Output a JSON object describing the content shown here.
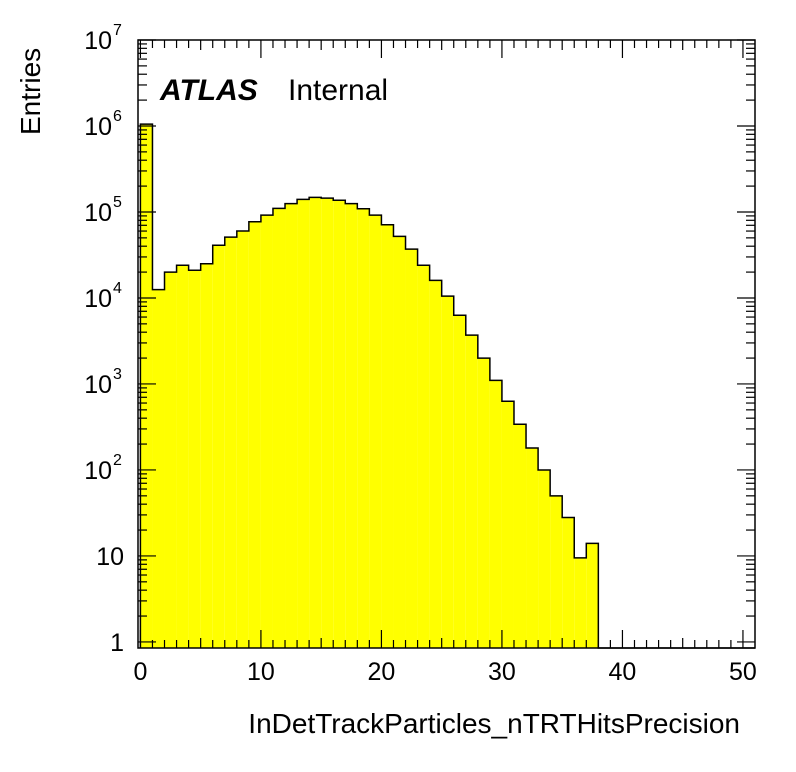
{
  "labels": {
    "atlas": "ATLAS",
    "internal": "Internal"
  },
  "chart_data": {
    "type": "bar",
    "histogram": true,
    "xlabel": "InDetTrackParticles_nTRTHitsPrecision",
    "ylabel": "Entries",
    "xlim": [
      -0.2,
      51
    ],
    "ylim": [
      0.85,
      10000000
    ],
    "yscale": "log",
    "bin_width": 1,
    "bin_starts": [
      0,
      1,
      2,
      3,
      4,
      5,
      6,
      7,
      8,
      9,
      10,
      11,
      12,
      13,
      14,
      15,
      16,
      17,
      18,
      19,
      20,
      21,
      22,
      23,
      24,
      25,
      26,
      27,
      28,
      29,
      30,
      31,
      32,
      33,
      34,
      35,
      36,
      37,
      38,
      39,
      40,
      41,
      42,
      43,
      44,
      45,
      46,
      47,
      48,
      49,
      50
    ],
    "values": [
      1050000,
      12500,
      20000,
      24000,
      21000,
      25000,
      41000,
      51000,
      60000,
      77000,
      92000,
      110000,
      125000,
      140000,
      148000,
      145000,
      137000,
      125000,
      109000,
      92000,
      71000,
      52000,
      37000,
      24000,
      16000,
      10500,
      6300,
      3700,
      2000,
      1100,
      630,
      340,
      180,
      100,
      50,
      28,
      9.5,
      14,
      0,
      0,
      0,
      0,
      0,
      0,
      0,
      0,
      0,
      0,
      0,
      0,
      0
    ],
    "x_ticks": [
      0,
      10,
      20,
      30,
      40,
      50
    ],
    "y_ticks": [
      {
        "base": "1",
        "exp": ""
      },
      {
        "base": "10",
        "exp": ""
      },
      {
        "base": "10",
        "exp": "2"
      },
      {
        "base": "10",
        "exp": "3"
      },
      {
        "base": "10",
        "exp": "4"
      },
      {
        "base": "10",
        "exp": "5"
      },
      {
        "base": "10",
        "exp": "6"
      },
      {
        "base": "10",
        "exp": "7"
      }
    ],
    "fill_color": "#ffff00",
    "line_color": "#000000",
    "grid": false
  }
}
